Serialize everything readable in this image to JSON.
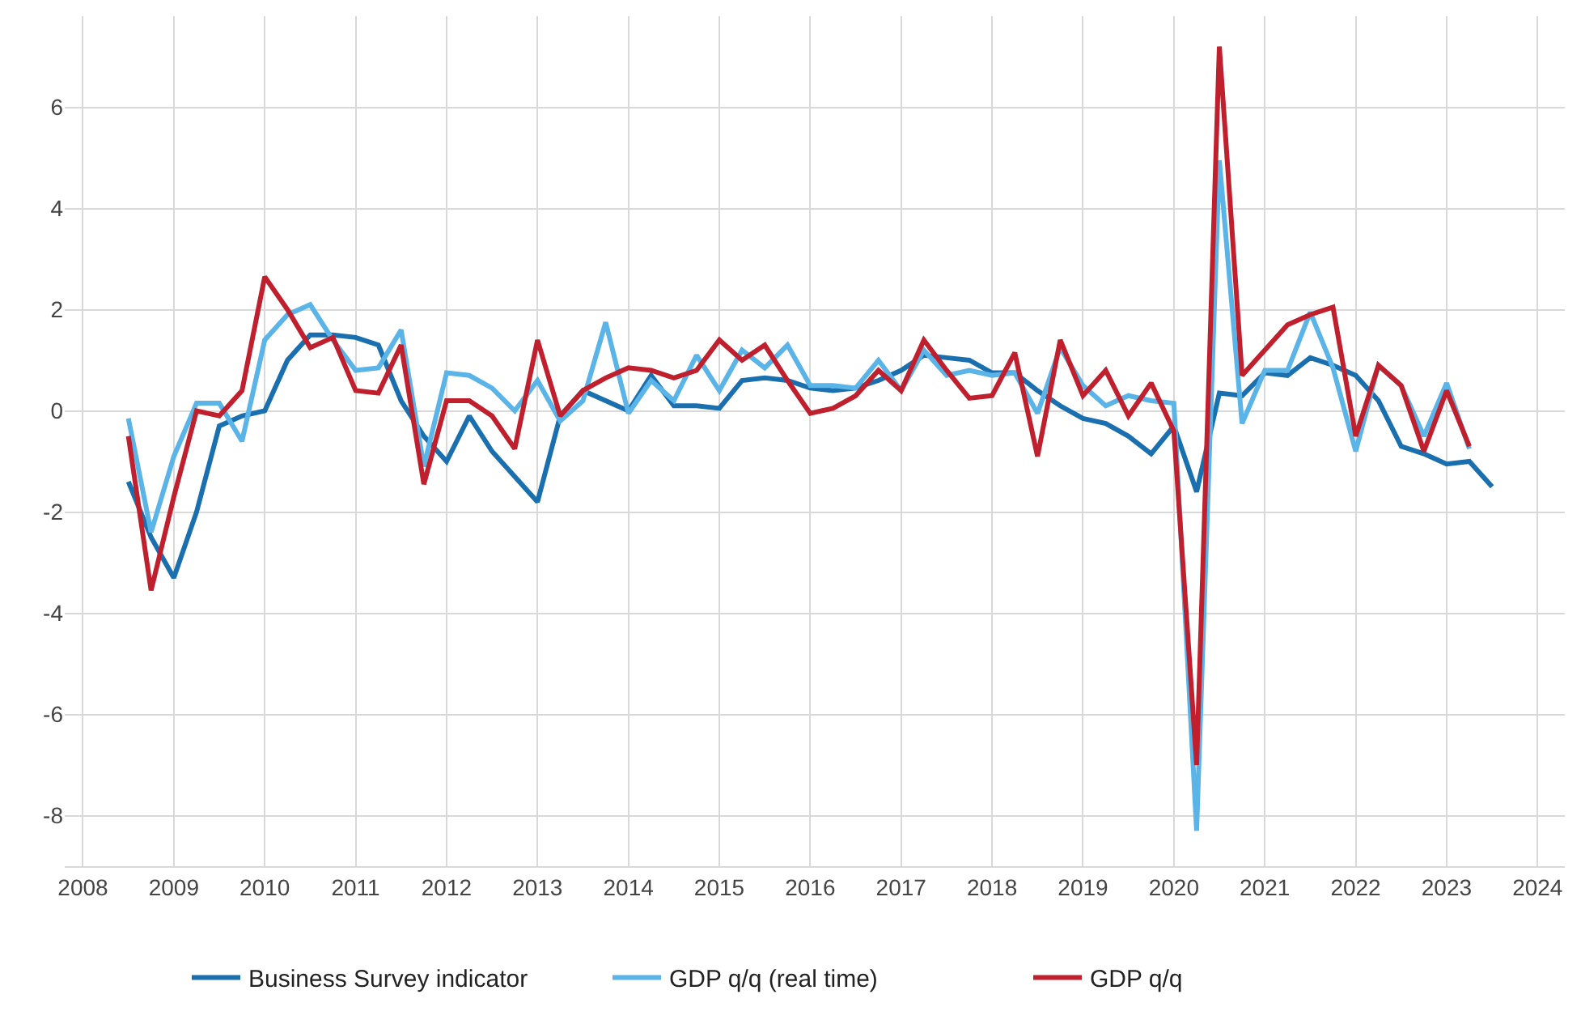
{
  "chart_data": {
    "type": "line",
    "xlim": [
      2007.8,
      2024.3
    ],
    "xticks": [
      2008,
      2009,
      2010,
      2011,
      2012,
      2013,
      2014,
      2015,
      2016,
      2017,
      2018,
      2019,
      2020,
      2021,
      2022,
      2023,
      2024
    ],
    "ylim": [
      -9,
      7.8
    ],
    "yticks": [
      -8,
      -6,
      -4,
      -2,
      0,
      2,
      4,
      6
    ],
    "grid": true,
    "legend": "bottom",
    "marker": "none",
    "line_style": "solid",
    "series": [
      {
        "name": "Business Survey indicator",
        "color": "#1a6faf",
        "x": [
          2008.5,
          2008.75,
          2009,
          2009.25,
          2009.5,
          2009.75,
          2010,
          2010.25,
          2010.5,
          2010.75,
          2011,
          2011.25,
          2011.5,
          2011.75,
          2012,
          2012.25,
          2012.5,
          2012.75,
          2013,
          2013.25,
          2013.5,
          2013.75,
          2014,
          2014.25,
          2014.5,
          2014.75,
          2015,
          2015.25,
          2015.5,
          2015.75,
          2016,
          2016.25,
          2016.5,
          2016.75,
          2017,
          2017.25,
          2017.5,
          2017.75,
          2018,
          2018.25,
          2018.5,
          2018.75,
          2019,
          2019.25,
          2019.5,
          2019.75,
          2020,
          2020.25,
          2020.5,
          2020.75,
          2021,
          2021.25,
          2021.5,
          2021.75,
          2022,
          2022.25,
          2022.5,
          2022.75,
          2023,
          2023.25,
          2023.5
        ],
        "values": [
          -1.4,
          -2.5,
          -3.3,
          -2.0,
          -0.3,
          -0.1,
          0.0,
          1.0,
          1.5,
          1.5,
          1.45,
          1.3,
          0.2,
          -0.5,
          -1.0,
          -0.1,
          -0.8,
          -1.3,
          -1.8,
          -0.1,
          0.4,
          0.2,
          0.0,
          0.7,
          0.1,
          0.1,
          0.05,
          0.6,
          0.65,
          0.6,
          0.45,
          0.4,
          0.45,
          0.6,
          0.8,
          1.1,
          1.05,
          1.0,
          0.75,
          0.75,
          0.4,
          0.1,
          -0.15,
          -0.25,
          -0.5,
          -0.85,
          -0.3,
          -1.6,
          0.35,
          0.3,
          0.75,
          0.7,
          1.05,
          0.9,
          0.7,
          0.2,
          -0.7,
          -0.85,
          -1.05,
          -1.0,
          -1.5
        ]
      },
      {
        "name": "GDP q/q (real time)",
        "color": "#5ab4e8",
        "x": [
          2008.5,
          2008.75,
          2009,
          2009.25,
          2009.5,
          2009.75,
          2010,
          2010.25,
          2010.5,
          2010.75,
          2011,
          2011.25,
          2011.5,
          2011.75,
          2012,
          2012.25,
          2012.5,
          2012.75,
          2013,
          2013.25,
          2013.5,
          2013.75,
          2014,
          2014.25,
          2014.5,
          2014.75,
          2015,
          2015.25,
          2015.5,
          2015.75,
          2016,
          2016.25,
          2016.5,
          2016.75,
          2017,
          2017.25,
          2017.5,
          2017.75,
          2018,
          2018.25,
          2018.5,
          2018.75,
          2019,
          2019.25,
          2019.5,
          2019.75,
          2020,
          2020.25,
          2020.5,
          2020.75,
          2021,
          2021.25,
          2021.5,
          2021.75,
          2022,
          2022.25,
          2022.5,
          2022.75,
          2023,
          2023.25
        ],
        "values": [
          -0.15,
          -2.4,
          -0.9,
          0.15,
          0.15,
          -0.6,
          1.4,
          1.9,
          2.1,
          1.4,
          0.8,
          0.85,
          1.6,
          -1.1,
          0.75,
          0.7,
          0.45,
          0.0,
          0.6,
          -0.2,
          0.2,
          1.75,
          -0.05,
          0.6,
          0.2,
          1.1,
          0.4,
          1.2,
          0.85,
          1.3,
          0.5,
          0.5,
          0.45,
          1.0,
          0.4,
          1.2,
          0.7,
          0.8,
          0.7,
          0.75,
          -0.05,
          1.25,
          0.5,
          0.1,
          0.3,
          0.2,
          0.15,
          -8.3,
          4.95,
          -0.25,
          0.8,
          0.8,
          1.95,
          0.85,
          -0.8,
          0.9,
          0.5,
          -0.5,
          0.55,
          -0.75
        ]
      },
      {
        "name": "GDP q/q",
        "color": "#c0202e",
        "x": [
          2008.5,
          2008.75,
          2009,
          2009.25,
          2009.5,
          2009.75,
          2010,
          2010.25,
          2010.5,
          2010.75,
          2011,
          2011.25,
          2011.5,
          2011.75,
          2012,
          2012.25,
          2012.5,
          2012.75,
          2013,
          2013.25,
          2013.5,
          2013.75,
          2014,
          2014.25,
          2014.5,
          2014.75,
          2015,
          2015.25,
          2015.5,
          2015.75,
          2016,
          2016.25,
          2016.5,
          2016.75,
          2017,
          2017.25,
          2017.5,
          2017.75,
          2018,
          2018.25,
          2018.5,
          2018.75,
          2019,
          2019.25,
          2019.5,
          2019.75,
          2020,
          2020.25,
          2020.5,
          2020.75,
          2021,
          2021.25,
          2021.5,
          2021.75,
          2022,
          2022.25,
          2022.5,
          2022.75,
          2023,
          2023.25
        ],
        "values": [
          -0.5,
          -3.55,
          -1.7,
          0.0,
          -0.1,
          0.4,
          2.65,
          2.0,
          1.25,
          1.45,
          0.4,
          0.35,
          1.3,
          -1.45,
          0.2,
          0.2,
          -0.1,
          -0.75,
          1.4,
          -0.1,
          0.4,
          0.65,
          0.85,
          0.8,
          0.65,
          0.8,
          1.4,
          1.0,
          1.3,
          0.6,
          -0.05,
          0.05,
          0.3,
          0.8,
          0.4,
          1.4,
          0.8,
          0.25,
          0.3,
          1.15,
          -0.9,
          1.4,
          0.3,
          0.8,
          -0.1,
          0.55,
          -0.4,
          -7.0,
          7.2,
          0.7,
          1.2,
          1.7,
          1.9,
          2.05,
          -0.5,
          0.9,
          0.5,
          -0.8,
          0.4,
          -0.7
        ]
      }
    ]
  }
}
